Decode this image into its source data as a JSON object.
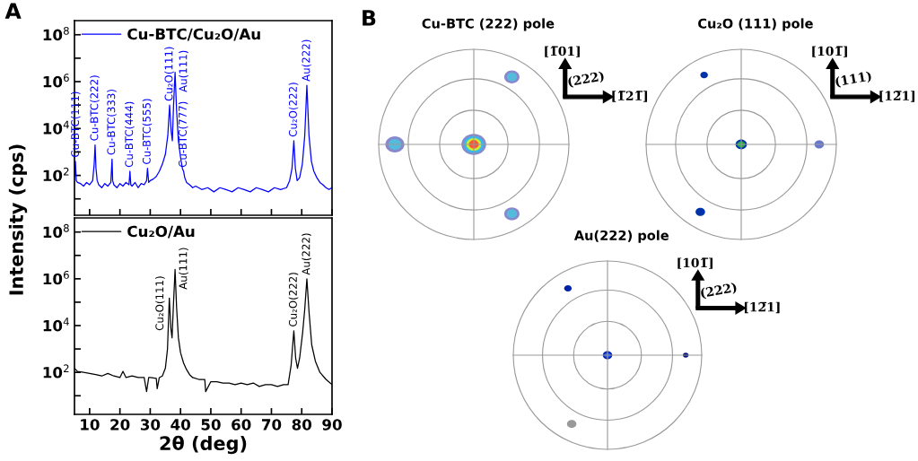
{
  "chart_data": [
    {
      "type": "line",
      "ylabel": "Intensity (cps)",
      "xlim": [
        5,
        90
      ],
      "xticks": [
        10,
        20,
        30,
        40,
        50,
        60,
        70,
        80,
        90
      ],
      "ylim": [
        2,
        400000000
      ],
      "log": true,
      "tick_labels": "y",
      "legend": "top left",
      "grid": false,
      "yticks": [
        {
          "value": 10,
          "label": null
        },
        {
          "value": 100,
          "label": "10$^{2}$"
        },
        {
          "value": 1000,
          "label": null
        },
        {
          "value": 10000,
          "label": "10$^{4}$"
        },
        {
          "value": 100000,
          "label": null
        },
        {
          "value": 1000000,
          "label": "10$^{6}$"
        },
        {
          "value": 10000000,
          "label": null
        },
        {
          "value": 100000000,
          "label": "10$^{8}$"
        }
      ],
      "x": [
        5,
        5.3,
        5.6,
        6,
        7,
        8,
        9,
        10,
        11,
        11.5,
        11.8,
        12.1,
        12.5,
        13,
        14,
        15,
        16,
        17,
        17.4,
        17.6,
        18,
        19,
        20,
        21,
        22,
        23,
        23.3,
        23.6,
        24,
        25,
        26,
        27,
        28,
        28.8,
        29.1,
        29.5,
        30,
        31,
        32,
        33,
        34,
        35,
        35.8,
        36.4,
        36.9,
        37.3,
        37.7,
        38.2,
        38.7,
        39.3,
        40,
        40.6,
        41,
        41.4,
        42,
        43,
        44,
        45,
        47,
        49,
        51,
        53,
        55,
        57,
        59,
        61,
        63,
        65,
        67,
        69,
        71,
        73,
        75,
        76,
        76.8,
        77.4,
        77.9,
        78.5,
        79.3,
        80.2,
        81,
        81.7,
        82.4,
        83.2,
        84,
        85,
        86,
        87,
        88,
        89,
        90
      ],
      "series": [
        {
          "name": "Cu-BTC/Cu₂O/Au",
          "color": "#0000ff",
          "values": [
            100,
            400,
            60,
            50,
            45,
            35,
            50,
            40,
            60,
            300,
            2000,
            200,
            60,
            40,
            30,
            45,
            35,
            50,
            500,
            60,
            40,
            30,
            45,
            35,
            50,
            40,
            150,
            40,
            35,
            50,
            30,
            45,
            40,
            60,
            200,
            50,
            60,
            70,
            90,
            150,
            300,
            800,
            5000,
            100000,
            8000,
            3000,
            100000,
            2500000,
            60000,
            3000,
            600,
            200,
            150,
            80,
            50,
            40,
            30,
            35,
            25,
            30,
            20,
            30,
            25,
            20,
            30,
            25,
            20,
            30,
            25,
            20,
            30,
            25,
            30,
            60,
            200,
            3000,
            200,
            60,
            80,
            300,
            5000,
            700000,
            5000,
            400,
            150,
            80,
            50,
            40,
            30,
            25,
            30
          ]
        }
      ],
      "annotations": [
        "A",
        {
          "text": "Cu-BTC(111)",
          "x": 5.5,
          "y": 400
        },
        {
          "text": "Cu-BTC(222)",
          "x": 11.8,
          "y": 2000
        },
        {
          "text": "Cu-BTC(333)",
          "x": 17.4,
          "y": 500
        },
        {
          "text": "Cu-BTC(444)",
          "x": 23.3,
          "y": 150
        },
        {
          "text": "Cu-BTC(555)",
          "x": 29.1,
          "y": 200
        },
        {
          "text": "Cu₂O(111)",
          "x": 36.4,
          "y": 100000
        },
        {
          "text": "Au(111)",
          "x": 38.2,
          "y": 2500000
        },
        {
          "text": "Cu-BTC(777)",
          "x": 41,
          "y": 150
        },
        {
          "text": "Cu₂O(222)",
          "x": 77.4,
          "y": 3000
        },
        {
          "text": "Au(222)",
          "x": 81.7,
          "y": 700000
        }
      ]
    },
    {
      "type": "line",
      "xlabel": "2θ (deg)",
      "xlim": [
        5,
        90
      ],
      "xticks": [
        10,
        20,
        30,
        40,
        50,
        60,
        70,
        80,
        90
      ],
      "ylim": [
        1.6,
        400000000
      ],
      "log": true,
      "legend": "top left",
      "grid": false,
      "yticks": [
        {
          "value": 10,
          "label": null
        },
        {
          "value": 100,
          "label": "10$^{2}$"
        },
        {
          "value": 1000,
          "label": null
        },
        {
          "value": 10000,
          "label": "10$^{4}$"
        },
        {
          "value": 100000,
          "label": null
        },
        {
          "value": 1000000,
          "label": "10$^{6}$"
        },
        {
          "value": 10000000,
          "label": null
        },
        {
          "value": 100000000,
          "label": "10$^{8}$"
        }
      ],
      "x": [
        5,
        6,
        8,
        10,
        12,
        14,
        16,
        18,
        20,
        21,
        22,
        24,
        26,
        28,
        28.8,
        29.5,
        30,
        32,
        32.3,
        33,
        34,
        35,
        35.7,
        36.3,
        36.8,
        37.2,
        37.7,
        38.2,
        38.7,
        39.3,
        40,
        41,
        42,
        43,
        44,
        46,
        48,
        48.3,
        50,
        52,
        54,
        56,
        58,
        60,
        62,
        64,
        66,
        68,
        70,
        72,
        74,
        75.5,
        76.5,
        77.4,
        78,
        78.6,
        79.3,
        80.3,
        81,
        81.7,
        82.4,
        83.3,
        84.5,
        86,
        88,
        90
      ],
      "series": [
        {
          "name": "Cu₂O/Au",
          "color": "#000000",
          "values": [
            150,
            110,
            100,
            90,
            80,
            70,
            90,
            70,
            60,
            110,
            60,
            70,
            60,
            60,
            15,
            60,
            60,
            55,
            20,
            60,
            70,
            150,
            1000,
            150000,
            8000,
            3000,
            100000,
            2500000,
            60000,
            3000,
            700,
            250,
            130,
            80,
            60,
            50,
            50,
            15,
            40,
            40,
            35,
            35,
            30,
            35,
            30,
            35,
            25,
            30,
            30,
            25,
            30,
            30,
            200,
            6000,
            400,
            150,
            400,
            5000,
            50000,
            1000000,
            40000,
            1500,
            300,
            100,
            50,
            30
          ]
        }
      ],
      "annotations": [
        {
          "text": "Cu₂O(111)",
          "x": 36.3,
          "y": 150000
        },
        {
          "text": "Au(111)",
          "x": 38.2,
          "y": 2500000
        },
        {
          "text": "Cu₂O(222)",
          "x": 77.4,
          "y": 6000
        },
        {
          "text": "Au(222)",
          "x": 81.7,
          "y": 1000000
        }
      ]
    },
    {
      "type": "other",
      "title": "Cu-BTC (222) pole",
      "annotations": [
        "[1̅01]",
        "(222)",
        "[1̅21̅]",
        "B"
      ]
    },
    {
      "type": "other",
      "title": "Cu₂O (111) pole",
      "annotations": [
        "[101̅]",
        "(111)",
        "[12̅1]"
      ]
    },
    {
      "type": "other",
      "title": "Au(222) pole",
      "annotations": [
        "[101̅]",
        "(222)",
        "[12̅1]"
      ]
    }
  ]
}
